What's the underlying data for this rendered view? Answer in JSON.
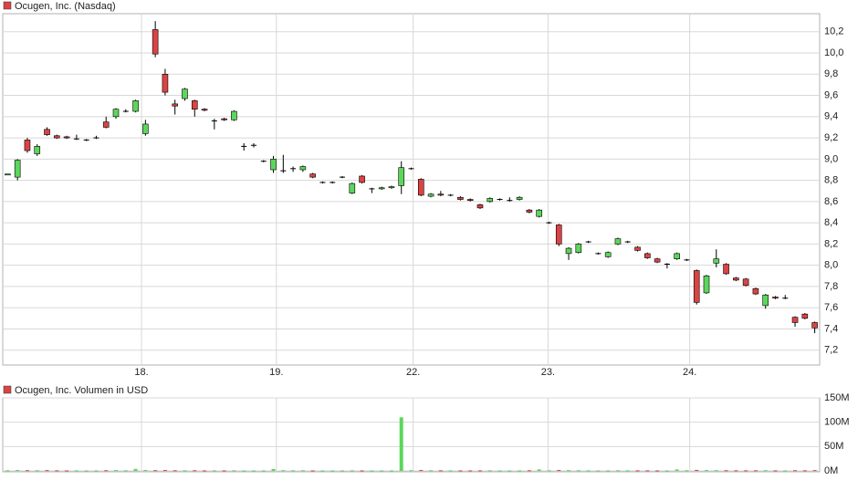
{
  "chart_data": [
    {
      "type": "candlestick",
      "title": "Ocugen, Inc. (Nasdaq)",
      "legend_color": "#d94444",
      "up_color": "#5cd65c",
      "down_color": "#d94444",
      "open": [
        8.85,
        8.83,
        9.18,
        9.05,
        9.28,
        9.22,
        9.21,
        9.19,
        9.18,
        9.2,
        9.35,
        9.4,
        9.45,
        9.45,
        9.24,
        10.22,
        9.8,
        9.52,
        9.57,
        9.55,
        9.47,
        9.36,
        9.38,
        9.37,
        9.12,
        9.13,
        8.98,
        8.9,
        8.89,
        8.91,
        8.9,
        8.86,
        8.78,
        8.78,
        8.83,
        8.68,
        8.84,
        8.72,
        8.72,
        8.73,
        8.75,
        8.91,
        8.81,
        8.65,
        8.67,
        8.66,
        8.64,
        8.62,
        8.57,
        8.6,
        8.62,
        8.61,
        8.62,
        8.52,
        8.46,
        8.4,
        8.38,
        8.11,
        8.12,
        8.22,
        8.11,
        8.08,
        8.2,
        8.22,
        8.17,
        8.11,
        8.06,
        8.01,
        8.06,
        8.05,
        7.95,
        7.74,
        8.02,
        8.01,
        7.88,
        7.87,
        7.78,
        7.62,
        7.7,
        7.69,
        7.51,
        7.54,
        7.46
      ],
      "high": [
        8.86,
        9.0,
        9.2,
        9.14,
        9.3,
        9.23,
        9.22,
        9.23,
        9.19,
        9.22,
        9.4,
        9.48,
        9.47,
        9.56,
        9.37,
        10.3,
        9.85,
        9.56,
        9.67,
        9.56,
        9.48,
        9.38,
        9.39,
        9.46,
        9.15,
        9.15,
        8.99,
        9.03,
        9.04,
        8.93,
        8.94,
        8.87,
        8.79,
        8.79,
        8.84,
        8.78,
        8.85,
        8.73,
        8.74,
        8.75,
        8.98,
        8.92,
        8.82,
        8.68,
        8.7,
        8.67,
        8.65,
        8.63,
        8.58,
        8.64,
        8.63,
        8.64,
        8.65,
        8.53,
        8.53,
        8.41,
        8.39,
        8.17,
        8.21,
        8.23,
        8.12,
        8.13,
        8.26,
        8.23,
        8.18,
        8.12,
        8.07,
        8.02,
        8.12,
        8.06,
        7.96,
        7.91,
        8.15,
        8.02,
        7.89,
        7.88,
        7.79,
        7.73,
        7.71,
        7.72,
        7.52,
        7.55,
        7.47
      ],
      "low": [
        8.85,
        8.8,
        9.06,
        9.03,
        9.22,
        9.19,
        9.19,
        9.18,
        9.17,
        9.19,
        9.29,
        9.38,
        9.44,
        9.44,
        9.22,
        9.96,
        9.6,
        9.42,
        9.55,
        9.4,
        9.45,
        9.28,
        9.36,
        9.36,
        9.08,
        9.11,
        8.97,
        8.87,
        8.87,
        8.88,
        8.88,
        8.82,
        8.77,
        8.77,
        8.82,
        8.67,
        8.77,
        8.68,
        8.71,
        8.72,
        8.67,
        8.9,
        8.65,
        8.64,
        8.65,
        8.65,
        8.61,
        8.6,
        8.53,
        8.59,
        8.61,
        8.6,
        8.61,
        8.49,
        8.45,
        8.39,
        8.18,
        8.05,
        8.11,
        8.21,
        8.1,
        8.07,
        8.19,
        8.21,
        8.13,
        8.06,
        8.02,
        7.97,
        8.05,
        8.04,
        7.63,
        7.73,
        7.98,
        7.91,
        7.85,
        7.8,
        7.72,
        7.59,
        7.68,
        7.68,
        7.42,
        7.49,
        7.36
      ],
      "close": [
        8.86,
        8.99,
        9.08,
        9.12,
        9.23,
        9.2,
        9.2,
        9.19,
        9.18,
        9.2,
        9.3,
        9.47,
        9.45,
        9.55,
        9.33,
        9.99,
        9.63,
        9.5,
        9.66,
        9.47,
        9.46,
        9.36,
        9.37,
        9.45,
        9.12,
        9.13,
        8.98,
        9.0,
        8.89,
        8.91,
        8.93,
        8.83,
        8.78,
        8.78,
        8.83,
        8.77,
        8.78,
        8.72,
        8.73,
        8.74,
        8.92,
        8.91,
        8.66,
        8.67,
        8.66,
        8.66,
        8.62,
        8.61,
        8.54,
        8.63,
        8.62,
        8.61,
        8.64,
        8.5,
        8.52,
        8.4,
        8.2,
        8.16,
        8.2,
        8.22,
        8.11,
        8.12,
        8.25,
        8.22,
        8.14,
        8.07,
        8.03,
        8.01,
        8.11,
        8.05,
        7.65,
        7.9,
        8.06,
        7.92,
        7.86,
        7.81,
        7.73,
        7.72,
        7.69,
        7.69,
        7.46,
        7.5,
        7.41
      ],
      "xlim": [
        -0.5,
        82.5
      ],
      "xticks": [
        {
          "value": 13.6,
          "label": "18."
        },
        {
          "value": 27.3,
          "label": "19."
        },
        {
          "value": 41.2,
          "label": "22."
        },
        {
          "value": 54.9,
          "label": "23."
        },
        {
          "value": 69.3,
          "label": "24."
        }
      ],
      "ylim": [
        7.06,
        10.37
      ],
      "yticks": [
        {
          "value": 7.2,
          "label": "7,2"
        },
        {
          "value": 7.4,
          "label": "7,4"
        },
        {
          "value": 7.6,
          "label": "7,6"
        },
        {
          "value": 7.8,
          "label": "7,8"
        },
        {
          "value": 8.0,
          "label": "8,0"
        },
        {
          "value": 8.2,
          "label": "8,2"
        },
        {
          "value": 8.4,
          "label": "8,4"
        },
        {
          "value": 8.6,
          "label": "8,6"
        },
        {
          "value": 8.8,
          "label": "8,8"
        },
        {
          "value": 9.0,
          "label": "9,0"
        },
        {
          "value": 9.2,
          "label": "9,2"
        },
        {
          "value": 9.4,
          "label": "9,4"
        },
        {
          "value": 9.6,
          "label": "9,6"
        },
        {
          "value": 9.8,
          "label": "9,8"
        },
        {
          "value": 10.0,
          "label": "10,0"
        },
        {
          "value": 10.2,
          "label": "10,2"
        }
      ],
      "grid": true
    },
    {
      "type": "bar",
      "title": "Ocugen, Inc. Volumen in USD",
      "legend_color": "#d94444",
      "values": [
        1200000,
        1800000,
        1500000,
        1300000,
        1600000,
        1200000,
        1000000,
        1100000,
        900000,
        1000000,
        1400000,
        1700000,
        1200000,
        4000000,
        2000000,
        1500000,
        1800000,
        1300000,
        1200000,
        1400000,
        1000000,
        1100000,
        1000000,
        1200000,
        900000,
        900000,
        1000000,
        4000000,
        1500000,
        1200000,
        1300000,
        1000000,
        900000,
        900000,
        1000000,
        1100000,
        1000000,
        900000,
        900000,
        1000000,
        110000000,
        1500000,
        1800000,
        1300000,
        1200000,
        1100000,
        1000000,
        1000000,
        1100000,
        1200000,
        1000000,
        900000,
        1000000,
        1300000,
        3000000,
        1200000,
        1800000,
        1600000,
        1400000,
        1100000,
        1000000,
        1000000,
        1300000,
        1100000,
        1100000,
        1100000,
        1000000,
        1000000,
        3000000,
        1300000,
        2000000,
        1800000,
        1600000,
        1400000,
        1200000,
        1200000,
        1300000,
        1500000,
        1100000,
        1000000,
        1400000,
        1200000,
        1600000
      ],
      "ylim": [
        0,
        150000000
      ],
      "yticks": [
        {
          "value": 0,
          "label": "0M"
        },
        {
          "value": 50000000,
          "label": "50M"
        },
        {
          "value": 100000000,
          "label": "100M"
        },
        {
          "value": 150000000,
          "label": "150M"
        }
      ],
      "grid": true
    }
  ]
}
